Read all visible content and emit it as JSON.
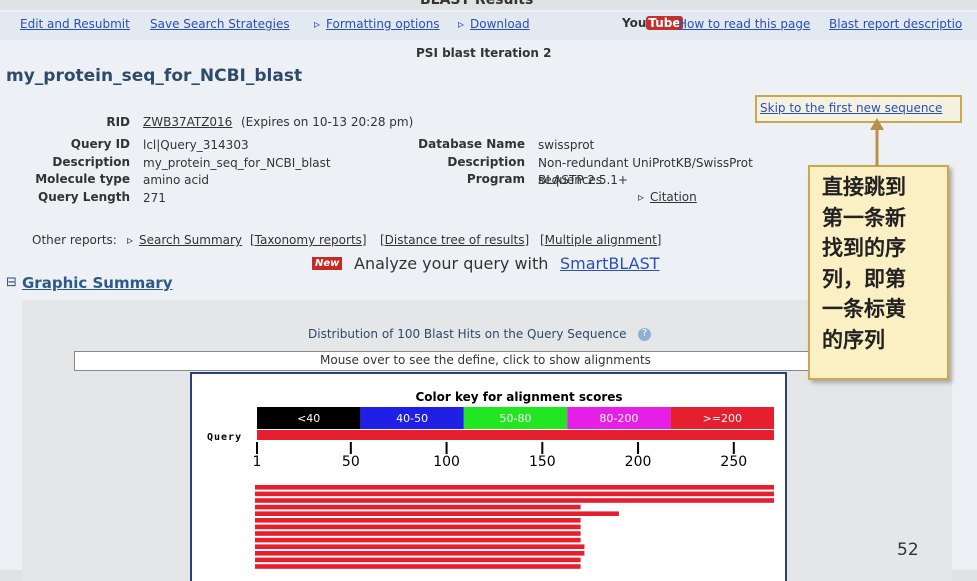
{
  "header": {
    "title": "BLAST Results"
  },
  "toolbar": {
    "links": [
      "Edit and Resubmit",
      "Save Search Strategies",
      "Formatting options",
      "Download"
    ],
    "logo": [
      "You",
      "Tube"
    ],
    "help_links": [
      "How to read this page",
      "Blast report descriptio"
    ]
  },
  "iteration": "PSI blast Iteration 2",
  "query_title": "my_protein_seq_for_NCBI_blast",
  "skip_link": "Skip to the first new sequence",
  "info": {
    "rid_label": "RID",
    "rid": "ZWB37ATZ016",
    "expires": "(Expires on 10-13 20:28 pm)",
    "left": [
      [
        "Query ID",
        "lcl|Query_314303"
      ],
      [
        "Description",
        "my_protein_seq_for_NCBI_blast"
      ],
      [
        "Molecule type",
        "amino acid"
      ],
      [
        "Query Length",
        "271"
      ]
    ],
    "right": [
      [
        "Database Name",
        "swissprot"
      ],
      [
        "Description",
        "Non-redundant UniProtKB/SwissProt sequences"
      ],
      [
        "Program",
        "BLASTP 2.5.1+"
      ]
    ],
    "citation": "Citation"
  },
  "other_reports": {
    "label": "Other reports:",
    "links": [
      "Search Summary",
      "[Taxonomy reports]",
      "[Distance tree of results]",
      "[Multiple alignment]"
    ]
  },
  "smartblast": {
    "badge": "New",
    "text": "Analyze your query with",
    "link": "SmartBLAST"
  },
  "graphic_summary": {
    "heading": "Graphic Summary",
    "title": "Distribution of 100 Blast Hits on the Query Sequence",
    "hint": "Mouse over to see the define, click to show alignments",
    "key_title": "Color key for alignment scores",
    "key": [
      {
        "label": "<40",
        "color": "#000000"
      },
      {
        "label": "40-50",
        "color": "#1f1fe6"
      },
      {
        "label": "50-80",
        "color": "#22e622"
      },
      {
        "label": "80-200",
        "color": "#e61fe6"
      },
      {
        "label": ">=200",
        "color": "#e61f2e"
      }
    ],
    "query_label": "Query",
    "xlim": [
      1,
      271
    ],
    "xticks": [
      1,
      50,
      100,
      150,
      200,
      250
    ],
    "hit_color": "#e61f2e",
    "hits": [
      [
        1,
        271
      ],
      [
        1,
        271
      ],
      [
        1,
        271
      ],
      [
        1,
        170
      ],
      [
        1,
        190
      ],
      [
        1,
        170
      ],
      [
        1,
        170
      ],
      [
        1,
        170
      ],
      [
        1,
        170
      ],
      [
        1,
        172
      ],
      [
        1,
        172
      ],
      [
        1,
        170
      ],
      [
        1,
        170
      ]
    ]
  },
  "callout": [
    "直接跳到",
    "第一条新",
    "找到的序",
    "列，即第",
    "一条标黄",
    "的序列"
  ],
  "slide_number": "52"
}
